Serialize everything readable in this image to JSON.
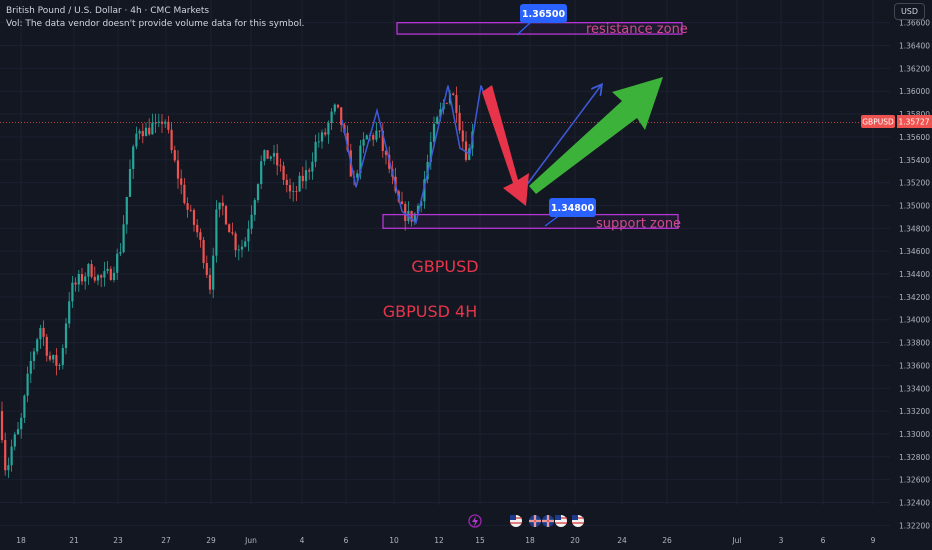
{
  "header": {
    "symbol_line": "British Pound / U.S. Dollar · 4h · CMC Markets",
    "volume_note": "Vol: The data vendor doesn't provide volume data for this symbol."
  },
  "currency_button": "USD",
  "current_price": {
    "symbol": "GBPUSD",
    "price": "1.35727",
    "value": 1.35727
  },
  "annotations": {
    "resistance_zone_label": "resistance zone",
    "resistance_price": "1.36500",
    "support_zone_label": "support zone",
    "support_price": "1.34800",
    "title1": "GBPUSD",
    "title2": "GBPUSD 4H"
  },
  "colors": {
    "up": "#26a69a",
    "down": "#ef5350",
    "zone": "#b436d4",
    "callout": "#2962ff",
    "blue_path": "#3d5bd9",
    "red_arrow": "#e8344b",
    "green_arrow": "#3db23a"
  },
  "chart_data": {
    "type": "candlestick",
    "y_ticks": [
      "1.36600",
      "1.36400",
      "1.36200",
      "1.36000",
      "1.35800",
      "1.35600",
      "1.35400",
      "1.35200",
      "1.35000",
      "1.34800",
      "1.34600",
      "1.34400",
      "1.34200",
      "1.34000",
      "1.33800",
      "1.33600",
      "1.33400",
      "1.33200",
      "1.33000",
      "1.32800",
      "1.32600",
      "1.32400",
      "1.32200"
    ],
    "x_ticks": [
      "18",
      "21",
      "23",
      "27",
      "29",
      "Jun",
      "4",
      "6",
      "10",
      "12",
      "15",
      "18",
      "20",
      "24",
      "26",
      "Jul",
      "3",
      "6",
      "9"
    ],
    "ylim": [
      1.3215,
      1.3675
    ],
    "resistance_zone": [
      1.365,
      1.366
    ],
    "support_zone": [
      1.348,
      1.3492
    ],
    "anchors": [
      [
        0,
        1.332
      ],
      [
        6,
        1.3265
      ],
      [
        12,
        1.329
      ],
      [
        20,
        1.3305
      ],
      [
        30,
        1.336
      ],
      [
        40,
        1.3395
      ],
      [
        50,
        1.3365
      ],
      [
        60,
        1.336
      ],
      [
        70,
        1.3425
      ],
      [
        80,
        1.3435
      ],
      [
        90,
        1.3445
      ],
      [
        100,
        1.3435
      ],
      [
        110,
        1.344
      ],
      [
        120,
        1.346
      ],
      [
        130,
        1.353
      ],
      [
        138,
        1.357
      ],
      [
        146,
        1.3565
      ],
      [
        152,
        1.357
      ],
      [
        158,
        1.3565
      ],
      [
        164,
        1.358
      ],
      [
        172,
        1.3545
      ],
      [
        180,
        1.352
      ],
      [
        188,
        1.3495
      ],
      [
        196,
        1.348
      ],
      [
        204,
        1.3455
      ],
      [
        210,
        1.343
      ],
      [
        216,
        1.349
      ],
      [
        222,
        1.35
      ],
      [
        228,
        1.3485
      ],
      [
        236,
        1.3465
      ],
      [
        244,
        1.3465
      ],
      [
        250,
        1.349
      ],
      [
        256,
        1.3515
      ],
      [
        262,
        1.354
      ],
      [
        270,
        1.3545
      ],
      [
        278,
        1.3535
      ],
      [
        286,
        1.352
      ],
      [
        292,
        1.3505
      ],
      [
        300,
        1.352
      ],
      [
        308,
        1.353
      ],
      [
        316,
        1.3555
      ],
      [
        324,
        1.356
      ],
      [
        330,
        1.3575
      ],
      [
        336,
        1.3585
      ],
      [
        342,
        1.357
      ],
      [
        348,
        1.354
      ],
      [
        354,
        1.352
      ],
      [
        360,
        1.3545
      ],
      [
        366,
        1.356
      ],
      [
        372,
        1.356
      ],
      [
        378,
        1.3565
      ],
      [
        384,
        1.3545
      ],
      [
        390,
        1.353
      ],
      [
        396,
        1.3505
      ],
      [
        402,
        1.3495
      ],
      [
        408,
        1.349
      ],
      [
        414,
        1.349
      ],
      [
        420,
        1.3505
      ],
      [
        426,
        1.353
      ],
      [
        432,
        1.356
      ],
      [
        438,
        1.3575
      ],
      [
        444,
        1.359
      ],
      [
        450,
        1.36
      ],
      [
        456,
        1.359
      ],
      [
        462,
        1.356
      ],
      [
        468,
        1.354
      ],
      [
        474,
        1.358
      ]
    ],
    "blue_path": [
      [
        342,
        1.3575
      ],
      [
        356,
        1.3516
      ],
      [
        377,
        1.3583
      ],
      [
        402,
        1.3495
      ],
      [
        416,
        1.3485
      ],
      [
        448,
        1.3605
      ],
      [
        460,
        1.355
      ],
      [
        470,
        1.3545
      ],
      [
        481,
        1.3605
      ],
      [
        520,
        1.351
      ],
      [
        601,
        1.3605
      ]
    ]
  }
}
